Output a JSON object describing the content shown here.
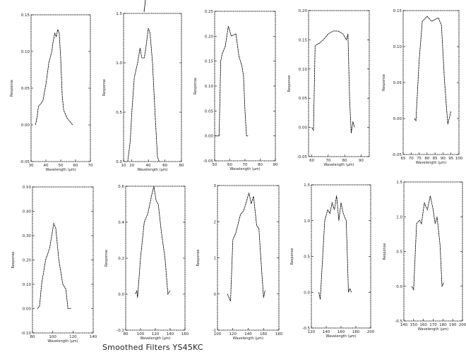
{
  "caption": "Smoothed Filters YS45KC",
  "chart_data": [
    {
      "type": "line",
      "xlabel": "Wavelength (µm)",
      "ylabel": "Response",
      "xlim": [
        30,
        70
      ],
      "ylim": [
        -0.05,
        0.15
      ],
      "xticks": [
        "30",
        "40",
        "50",
        "60",
        "70"
      ],
      "yticks": [
        "0.15",
        "0.10",
        "0.05",
        "0.00",
        "-0.05"
      ],
      "x": [
        33,
        34,
        35,
        37,
        38,
        40,
        42,
        44,
        45,
        46,
        47,
        48,
        49,
        50,
        51,
        52,
        54,
        56,
        58
      ],
      "y": [
        0.0,
        0.01,
        0.025,
        0.03,
        0.033,
        0.055,
        0.085,
        0.1,
        0.115,
        0.125,
        0.12,
        0.13,
        0.125,
        0.09,
        0.04,
        0.02,
        0.01,
        0.005,
        0.0
      ]
    },
    {
      "type": "line",
      "xlabel": "Wavelength (µm)",
      "ylabel": "Response",
      "xlim": [
        10,
        80
      ],
      "ylim": [
        0,
        1.5
      ],
      "xticks": [
        "10",
        "20",
        "40",
        "60",
        "80"
      ],
      "yticks": [
        "1.5",
        "1.0",
        "0.5",
        "0.0"
      ],
      "x": [
        15,
        18,
        20,
        23,
        27,
        30,
        32,
        35,
        37,
        40,
        42,
        45,
        48,
        51,
        53
      ],
      "y": [
        0,
        0.2,
        0.5,
        0.85,
        1.0,
        1.15,
        1.05,
        1.05,
        1.15,
        1.35,
        1.3,
        1.0,
        0.5,
        0.05,
        0
      ]
    },
    {
      "type": "line",
      "xlabel": "Wavelength (µm)",
      "ylabel": "Response",
      "xlim": [
        50,
        90
      ],
      "ylim": [
        -0.05,
        0.25
      ],
      "xticks": [
        "50",
        "60",
        "70",
        "80",
        "90"
      ],
      "yticks": [
        "0.25",
        "0.20",
        "0.15",
        "0.10",
        "0.05",
        "0.00",
        "-0.05"
      ],
      "x": [
        50,
        52,
        53,
        54,
        55,
        57,
        59,
        61,
        64,
        66,
        68,
        69,
        70,
        71,
        72
      ],
      "y": [
        0.0,
        0.0,
        0.0,
        0.15,
        0.165,
        0.18,
        0.22,
        0.2,
        0.205,
        0.16,
        0.14,
        0.12,
        0.05,
        0.0,
        0.0
      ]
    },
    {
      "type": "line",
      "xlabel": "Wavelength (µm)",
      "ylabel": "Response",
      "xlim": [
        58,
        95
      ],
      "ylim": [
        -0.05,
        0.2
      ],
      "xticks": [
        "60",
        "70",
        "80",
        "90"
      ],
      "yticks": [
        "0.20",
        "0.15",
        "0.10",
        "0.05",
        "0.00",
        "-0.05"
      ],
      "x": [
        60,
        61,
        62,
        65,
        67,
        70,
        73,
        76,
        79,
        81,
        82,
        83,
        84,
        85,
        86
      ],
      "y": [
        0.0,
        -0.005,
        0.14,
        0.145,
        0.15,
        0.16,
        0.165,
        0.165,
        0.16,
        0.15,
        0.16,
        0.05,
        -0.01,
        0.01,
        0.0
      ]
    },
    {
      "type": "line",
      "xlabel": "Wavelength (µm)",
      "ylabel": "Response",
      "xlim": [
        65,
        100
      ],
      "ylim": [
        -0.05,
        0.15
      ],
      "xticks": [
        "65",
        "70",
        "75",
        "80",
        "85",
        "90",
        "95",
        "100"
      ],
      "yticks": [
        "0.15",
        "0.10",
        "0.05",
        "0.00",
        "-0.05"
      ],
      "x": [
        72,
        73,
        75,
        77,
        80,
        83,
        87,
        89,
        91,
        93,
        95
      ],
      "y": [
        0.0,
        -0.003,
        0.08,
        0.135,
        0.142,
        0.135,
        0.14,
        0.13,
        0.05,
        -0.008,
        0.01
      ]
    },
    {
      "type": "line",
      "xlabel": "Wavelength (µm)",
      "ylabel": "Response",
      "xlim": [
        80,
        140
      ],
      "ylim": [
        -0.1,
        0.5
      ],
      "xticks": [
        "80",
        "100",
        "120",
        "140"
      ],
      "yticks": [
        "0.50",
        "0.40",
        "0.30",
        "0.20",
        "0.10",
        "0.00",
        "-0.10"
      ],
      "x": [
        85,
        87,
        89,
        93,
        97,
        101,
        103,
        106,
        110,
        113,
        115,
        118
      ],
      "y": [
        0.0,
        0.01,
        0.1,
        0.2,
        0.25,
        0.35,
        0.33,
        0.2,
        0.1,
        0.08,
        0.0,
        0.0
      ]
    },
    {
      "type": "line",
      "xlabel": "Wavelength (µm)",
      "ylabel": "Response",
      "xlim": [
        80,
        160
      ],
      "ylim": [
        -0.2,
        0.6
      ],
      "xticks": [
        "80",
        "100",
        "120",
        "140",
        "160"
      ],
      "yticks": [
        "0.6",
        "0.4",
        "0.2",
        "0.0",
        "-0.2"
      ],
      "x": [
        93,
        95,
        96,
        100,
        105,
        110,
        115,
        118,
        121,
        124,
        128,
        133,
        137,
        140
      ],
      "y": [
        0.0,
        0.02,
        -0.02,
        0.2,
        0.4,
        0.45,
        0.55,
        0.6,
        0.52,
        0.5,
        0.35,
        0.2,
        0.0,
        0.02
      ]
    },
    {
      "type": "line",
      "xlabel": "Wavelength (µm)",
      "ylabel": "Response",
      "xlim": [
        100,
        180
      ],
      "ylim": [
        -1,
        3
      ],
      "xticks": [
        "100",
        "120",
        "140",
        "160",
        "180"
      ],
      "yticks": [
        "3",
        "2",
        "1",
        "0",
        "-1"
      ],
      "x": [
        113,
        117,
        120,
        124,
        130,
        134,
        137,
        141,
        144,
        147,
        151,
        154,
        158,
        160,
        162
      ],
      "y": [
        0.0,
        -0.2,
        1.5,
        1.7,
        2.2,
        2.3,
        2.5,
        2.8,
        2.5,
        2.7,
        1.9,
        1.8,
        0.5,
        -0.1,
        0.1
      ]
    },
    {
      "type": "line",
      "xlabel": "Wavelength (µm)",
      "ylabel": "Response",
      "xlim": [
        120,
        200
      ],
      "ylim": [
        -0.5,
        1.5
      ],
      "xticks": [
        "120",
        "140",
        "160",
        "180",
        "200"
      ],
      "yticks": [
        "1.5",
        "1.0",
        "0.5",
        "0.0",
        "-0.5"
      ],
      "x": [
        130,
        132,
        138,
        142,
        145,
        148,
        151,
        154,
        157,
        160,
        163,
        167,
        170,
        172,
        174
      ],
      "y": [
        0.0,
        -0.1,
        1.0,
        1.15,
        1.1,
        1.25,
        1.15,
        1.35,
        1.0,
        1.25,
        1.1,
        1.0,
        0.0,
        0.05,
        0.0
      ]
    },
    {
      "type": "line",
      "xlabel": "Wavelength (µm)",
      "ylabel": "Response",
      "xlim": [
        140,
        200
      ],
      "ylim": [
        -0.5,
        1.5
      ],
      "xticks": [
        "140",
        "150",
        "160",
        "170",
        "180",
        "190",
        "200"
      ],
      "yticks": [
        "1.5",
        "1.0",
        "0.5",
        "0.0",
        "-0.5"
      ],
      "x": [
        148,
        150,
        153,
        156,
        158,
        161,
        164,
        167,
        170,
        172,
        174,
        177,
        179,
        181
      ],
      "y": [
        0.0,
        -0.05,
        0.9,
        0.95,
        0.9,
        1.2,
        1.1,
        1.3,
        1.1,
        0.9,
        1.0,
        0.6,
        0.0,
        0.05
      ]
    }
  ]
}
